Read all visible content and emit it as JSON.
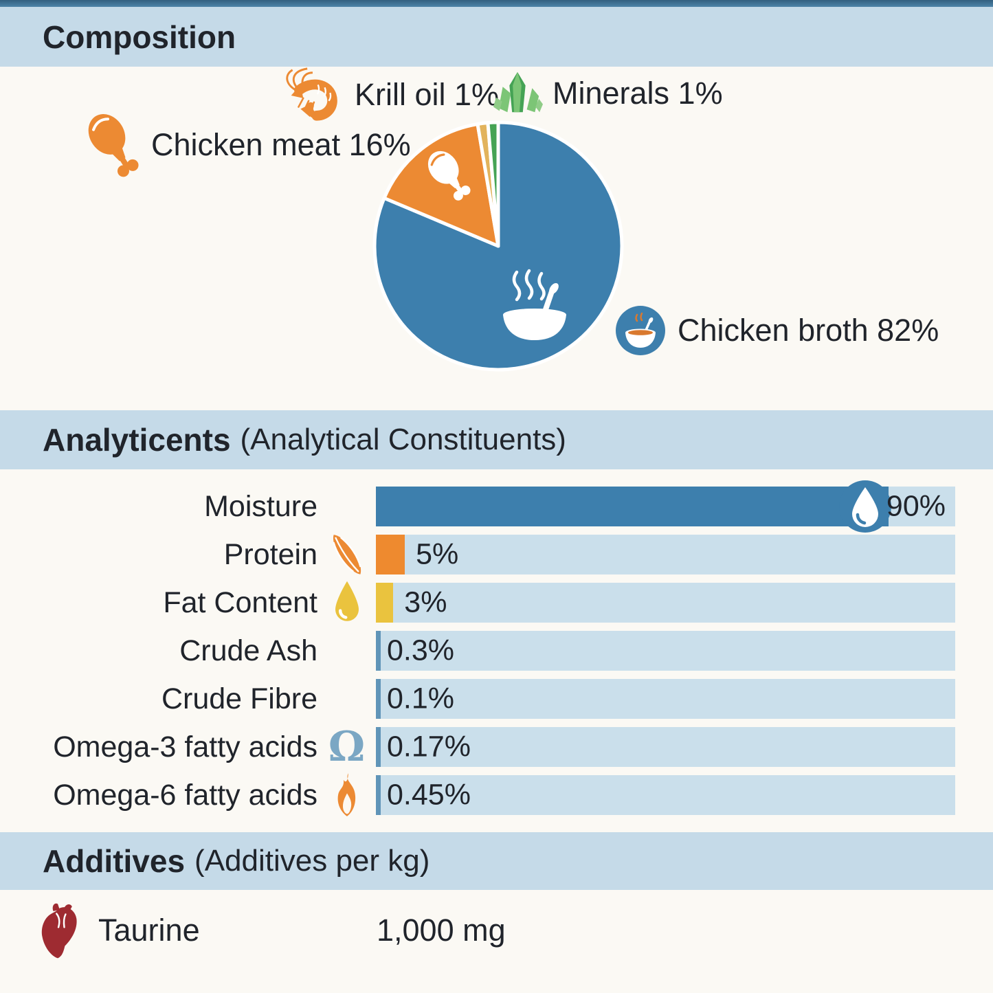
{
  "theme": {
    "bg": "#fbf9f4",
    "band": "#c5dae8",
    "strip": "#4d84a8",
    "stripDark": "#335f7f",
    "blue": "#3d7fad",
    "track": "#cadfeb",
    "sliver": "#6095b8",
    "orange": "#ec8a33",
    "gold": "#eac33e",
    "krill": "#e2b35c",
    "green": "#45a355",
    "green2": "#7cc576",
    "omega": "#7ba7c4",
    "broth": "#d9792f",
    "red": "#9e2b31",
    "text": "#20242b"
  },
  "composition": {
    "title": "Composition",
    "labels": {
      "krill": "Krill oil 1%",
      "minerals": "Minerals 1%",
      "chicken_meat": "Chicken meat 16%",
      "chicken_broth": "Chicken broth 82%"
    }
  },
  "analytical": {
    "title_bold": "Analyticents",
    "title_rest": "(Analytical Constituents)",
    "rows": [
      {
        "label": "Moisture",
        "value_label": "90%",
        "icon": "water-drop-badge",
        "color": "#3d7fad"
      },
      {
        "label": "Protein",
        "value_label": "5%",
        "icon": "protein-pod-icon",
        "color": "#ee8a2f"
      },
      {
        "label": "Fat Content",
        "value_label": "3%",
        "icon": "fat-droplet-icon",
        "color": "#eac33e"
      },
      {
        "label": "Crude Ash",
        "value_label": "0.3%",
        "icon": "",
        "color": "#6095b8"
      },
      {
        "label": "Crude Fibre",
        "value_label": "0.1%",
        "icon": "",
        "color": "#6095b8"
      },
      {
        "label": "Omega-3 fatty acids",
        "value_label": "0.17%",
        "icon": "omega-icon",
        "color": "#6095b8"
      },
      {
        "label": "Omega-6 fatty acids",
        "value_label": "0.45%",
        "icon": "flame-icon",
        "color": "#6095b8"
      }
    ]
  },
  "additives": {
    "title_bold": "Additives",
    "title_rest": "(Additives per kg)",
    "items": [
      {
        "icon": "heart-icon",
        "label": "Taurine",
        "value": "1,000 mg"
      }
    ]
  },
  "chart_data": [
    {
      "type": "pie",
      "title": "Composition",
      "direction": "clockwise",
      "start": "12 o'clock",
      "slices": [
        {
          "label": "Chicken broth",
          "value": 82,
          "color": "#3d7fad",
          "icon": "soup-bowl-icon"
        },
        {
          "label": "Chicken meat",
          "value": 16,
          "color": "#ec8a33",
          "icon": "drumstick-icon"
        },
        {
          "label": "Krill oil",
          "value": 1,
          "color": "#e2b35c",
          "icon": "shrimp-icon"
        },
        {
          "label": "Minerals",
          "value": 1,
          "color": "#45a355",
          "icon": "minerals-crystal-icon"
        }
      ]
    },
    {
      "type": "bar",
      "orientation": "horizontal",
      "title": "Analyticents (Analytical Constituents)",
      "categories": [
        "Moisture",
        "Protein",
        "Fat Content",
        "Crude Ash",
        "Crude Fibre",
        "Omega-3 fatty acids",
        "Omega-6 fatty acids"
      ],
      "values": [
        90,
        5,
        3,
        0.3,
        0.1,
        0.17,
        0.45
      ],
      "value_labels": [
        "90%",
        "5%",
        "3%",
        "0.3%",
        "0.1%",
        "0.17%",
        "0.45%"
      ],
      "xlim": [
        0,
        100
      ],
      "grid": false,
      "legend": "none"
    }
  ]
}
